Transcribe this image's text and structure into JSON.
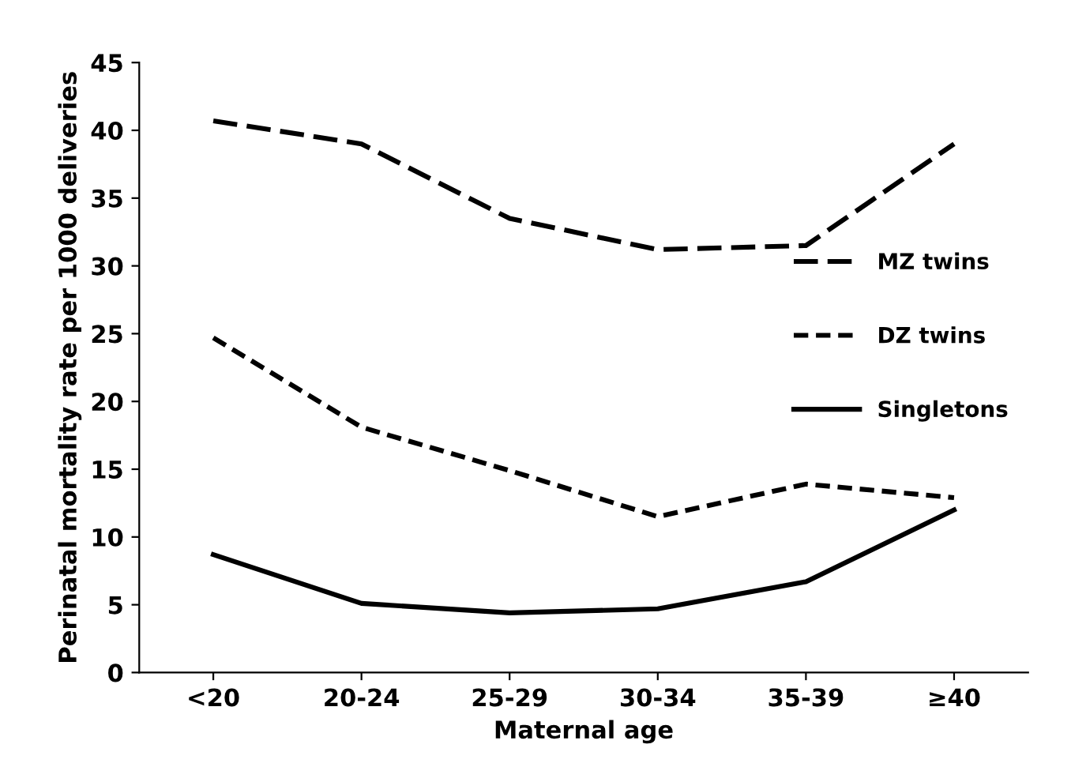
{
  "chart_data": {
    "type": "line",
    "xlabel": "Maternal age",
    "ylabel": "Perinatal mortality rate per 1000 deliveries",
    "categories": [
      "<20",
      "20-24",
      "25-29",
      "30-34",
      "35-39",
      "≥40"
    ],
    "ylim": [
      0,
      45
    ],
    "yticks": [
      0,
      5,
      10,
      15,
      20,
      25,
      30,
      35,
      40,
      45
    ],
    "grid": false,
    "legend": "right",
    "marker": "none",
    "series": [
      {
        "name": "MZ twins",
        "color": "#000000",
        "line_style": "dashed",
        "values": [
          40.7,
          39,
          33.5,
          31.2,
          31.5,
          39
        ]
      },
      {
        "name": "DZ twins",
        "color": "#000000",
        "line_style": "dotted",
        "values": [
          24.7,
          18.1,
          14.9,
          11.5,
          13.9,
          12.9
        ]
      },
      {
        "name": "Singletons",
        "color": "#000000",
        "line_style": "solid",
        "values": [
          8.7,
          5.1,
          4.4,
          4.7,
          6.7,
          12.0
        ]
      }
    ]
  }
}
